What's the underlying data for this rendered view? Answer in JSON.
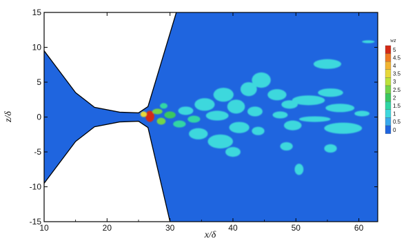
{
  "chart_data": {
    "type": "heatmap",
    "title": "",
    "xlabel": "x/δ",
    "ylabel": "z/δ",
    "xlim": [
      10,
      63
    ],
    "ylim": [
      -15,
      15
    ],
    "xticks": [
      "10",
      "20",
      "30",
      "40",
      "50",
      "60"
    ],
    "yticks": [
      "15",
      "10",
      "5",
      "0",
      "-5",
      "-10",
      "-15"
    ],
    "colorbar": {
      "title": "wz",
      "placement": "right",
      "levels": [
        "5",
        "4.5",
        "4",
        "3.5",
        "3",
        "2.5",
        "2",
        "1.5",
        "1",
        "0.5",
        "0"
      ],
      "colors": [
        "#d42a16",
        "#ee7a22",
        "#f2b431",
        "#e7d83a",
        "#bde23a",
        "#72d44a",
        "#3ac760",
        "#30d6a5",
        "#3ed8dd",
        "#38a9ec",
        "#1f65df"
      ]
    },
    "background_color": "#1f65df",
    "boundary": {
      "upper": [
        [
          10,
          9.5
        ],
        [
          15,
          3.5
        ],
        [
          18,
          1.4
        ],
        [
          22,
          0.7
        ],
        [
          25,
          0.6
        ],
        [
          26.5,
          1.5
        ],
        [
          31,
          15
        ]
      ],
      "lower": [
        [
          10,
          -9.5
        ],
        [
          15,
          -3.5
        ],
        [
          18,
          -1.4
        ],
        [
          22,
          -0.7
        ],
        [
          25,
          -0.6
        ],
        [
          26.5,
          -1.5
        ],
        [
          30,
          -15
        ]
      ]
    },
    "structures": [
      {
        "x": 26.8,
        "z": 0.1,
        "rx": 0.7,
        "rz": 0.8,
        "level": 5
      },
      {
        "x": 25.8,
        "z": 0.4,
        "rx": 0.5,
        "rz": 0.4,
        "level": 3.5
      },
      {
        "x": 28.0,
        "z": 0.8,
        "rx": 0.8,
        "rz": 0.4,
        "level": 2.5
      },
      {
        "x": 28.6,
        "z": -0.6,
        "rx": 0.7,
        "rz": 0.5,
        "level": 2.5
      },
      {
        "x": 30.0,
        "z": 0.3,
        "rx": 0.9,
        "rz": 0.5,
        "level": 2
      },
      {
        "x": 29.0,
        "z": 1.6,
        "rx": 0.6,
        "rz": 0.4,
        "level": 1.5
      },
      {
        "x": 31.5,
        "z": -1.0,
        "rx": 1.0,
        "rz": 0.5,
        "level": 1.5
      },
      {
        "x": 32.5,
        "z": 0.9,
        "rx": 1.2,
        "rz": 0.6,
        "level": 1
      },
      {
        "x": 33.8,
        "z": -0.3,
        "rx": 1.0,
        "rz": 0.5,
        "level": 1.5
      },
      {
        "x": 35.5,
        "z": 1.8,
        "rx": 1.6,
        "rz": 0.9,
        "level": 1
      },
      {
        "x": 34.5,
        "z": -2.4,
        "rx": 1.5,
        "rz": 0.8,
        "level": 1
      },
      {
        "x": 37.5,
        "z": 0.2,
        "rx": 1.8,
        "rz": 0.7,
        "level": 1
      },
      {
        "x": 38.5,
        "z": 3.2,
        "rx": 1.6,
        "rz": 1.0,
        "level": 1
      },
      {
        "x": 38.0,
        "z": -3.5,
        "rx": 2.0,
        "rz": 1.0,
        "level": 1
      },
      {
        "x": 40.5,
        "z": 1.5,
        "rx": 1.4,
        "rz": 1.0,
        "level": 1
      },
      {
        "x": 41.0,
        "z": -1.5,
        "rx": 1.6,
        "rz": 0.8,
        "level": 1
      },
      {
        "x": 42.5,
        "z": 4.0,
        "rx": 1.3,
        "rz": 1.0,
        "level": 1
      },
      {
        "x": 44.5,
        "z": 5.3,
        "rx": 1.5,
        "rz": 1.1,
        "level": 1
      },
      {
        "x": 43.5,
        "z": 0.8,
        "rx": 1.2,
        "rz": 0.7,
        "level": 1
      },
      {
        "x": 44.0,
        "z": -2.0,
        "rx": 1.0,
        "rz": 0.6,
        "level": 1
      },
      {
        "x": 40.0,
        "z": -5.0,
        "rx": 1.2,
        "rz": 0.7,
        "level": 1
      },
      {
        "x": 47.0,
        "z": 3.2,
        "rx": 1.5,
        "rz": 0.8,
        "level": 1
      },
      {
        "x": 47.5,
        "z": 0.3,
        "rx": 1.2,
        "rz": 0.5,
        "level": 1
      },
      {
        "x": 49.0,
        "z": 1.8,
        "rx": 1.3,
        "rz": 0.6,
        "level": 1
      },
      {
        "x": 49.5,
        "z": -1.2,
        "rx": 1.4,
        "rz": 0.7,
        "level": 1
      },
      {
        "x": 48.5,
        "z": -4.2,
        "rx": 1.0,
        "rz": 0.6,
        "level": 1
      },
      {
        "x": 52.0,
        "z": 2.4,
        "rx": 2.6,
        "rz": 0.7,
        "level": 1
      },
      {
        "x": 55.5,
        "z": 3.5,
        "rx": 2.0,
        "rz": 0.6,
        "level": 1
      },
      {
        "x": 57.0,
        "z": 1.3,
        "rx": 2.3,
        "rz": 0.6,
        "level": 1
      },
      {
        "x": 57.5,
        "z": -1.6,
        "rx": 3.0,
        "rz": 0.8,
        "level": 1
      },
      {
        "x": 53.0,
        "z": -0.3,
        "rx": 2.5,
        "rz": 0.4,
        "level": 1
      },
      {
        "x": 55.0,
        "z": 7.6,
        "rx": 2.2,
        "rz": 0.7,
        "level": 1
      },
      {
        "x": 55.5,
        "z": -4.5,
        "rx": 1.0,
        "rz": 0.6,
        "level": 1
      },
      {
        "x": 50.5,
        "z": -7.5,
        "rx": 0.7,
        "rz": 0.8,
        "level": 1
      },
      {
        "x": 60.5,
        "z": 0.5,
        "rx": 1.2,
        "rz": 0.4,
        "level": 1
      },
      {
        "x": 61.5,
        "z": 10.8,
        "rx": 1.0,
        "rz": 0.2,
        "level": 1
      }
    ]
  }
}
